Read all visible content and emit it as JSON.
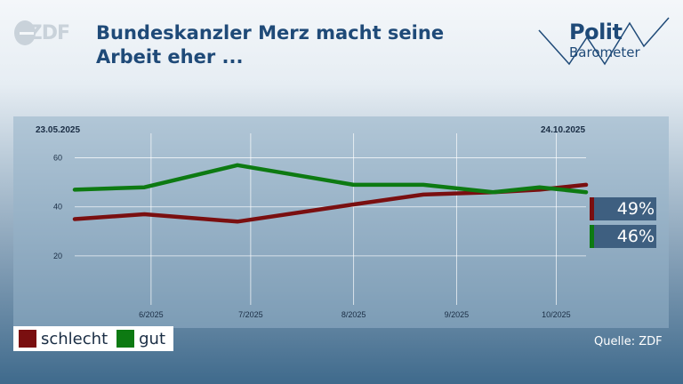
{
  "logo": {
    "text": "ZDF"
  },
  "title": "Bundeskanzler Merz macht seine Arbeit eher ...",
  "brand": {
    "line1": "Polit",
    "line2": "Barometer"
  },
  "date_start": "23.05.2025",
  "date_end": "24.10.2025",
  "source": "Quelle: ZDF",
  "chart_data": {
    "type": "line",
    "title": "Bundeskanzler Merz macht seine Arbeit eher ...",
    "x": [
      "23.05.2025",
      "13.06.2025",
      "11.07.2025",
      "15.08.2025",
      "05.09.2025",
      "26.09.2025",
      "10.10.2025",
      "24.10.2025"
    ],
    "x_date_values": [
      "2025-05-23",
      "2025-06-13",
      "2025-07-11",
      "2025-08-15",
      "2025-09-05",
      "2025-09-26",
      "2025-10-10",
      "2025-10-24"
    ],
    "tick_labels": [
      "6/2025",
      "7/2025",
      "8/2025",
      "9/2025",
      "10/2025"
    ],
    "y_ticks": [
      20,
      40,
      60
    ],
    "ylim": [
      0,
      70
    ],
    "grid": true,
    "legend_position": "bottom-left",
    "series": [
      {
        "name": "schlecht",
        "color": "#7a0f10",
        "values": [
          35,
          37,
          34,
          41,
          45,
          46,
          47,
          49
        ]
      },
      {
        "name": "gut",
        "color": "#0d7a12",
        "values": [
          47,
          48,
          57,
          49,
          49,
          46,
          48,
          46
        ]
      }
    ],
    "end_labels": [
      {
        "series": "schlecht",
        "text": "49%"
      },
      {
        "series": "gut",
        "text": "46%"
      }
    ]
  }
}
